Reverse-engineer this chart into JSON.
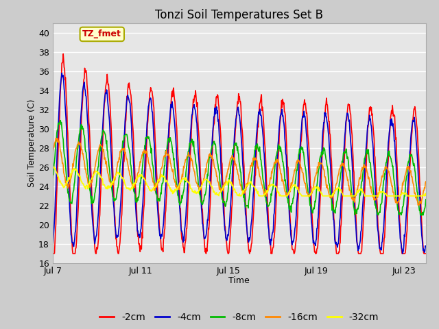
{
  "title": "Tonzi Soil Temperatures Set B",
  "xlabel": "Time",
  "ylabel": "Soil Temperature (C)",
  "ylim": [
    16,
    41
  ],
  "yticks": [
    16,
    18,
    20,
    22,
    24,
    26,
    28,
    30,
    32,
    34,
    36,
    38,
    40
  ],
  "xtick_labels": [
    "Jul 7",
    "Jul 11",
    "Jul 15",
    "Jul 19",
    "Jul 23"
  ],
  "xtick_positions": [
    0,
    4,
    8,
    12,
    16
  ],
  "colors": {
    "-2cm": "#ff0000",
    "-4cm": "#0000cc",
    "-8cm": "#00bb00",
    "-16cm": "#ff8800",
    "-32cm": "#ffff00"
  },
  "annotation_text": "TZ_fmet",
  "plot_bg_color": "#e6e6e6",
  "fig_bg_color": "#cccccc",
  "grid_color": "#ffffff",
  "title_fontsize": 12,
  "axis_fontsize": 9,
  "legend_fontsize": 10,
  "line_width": 1.2
}
